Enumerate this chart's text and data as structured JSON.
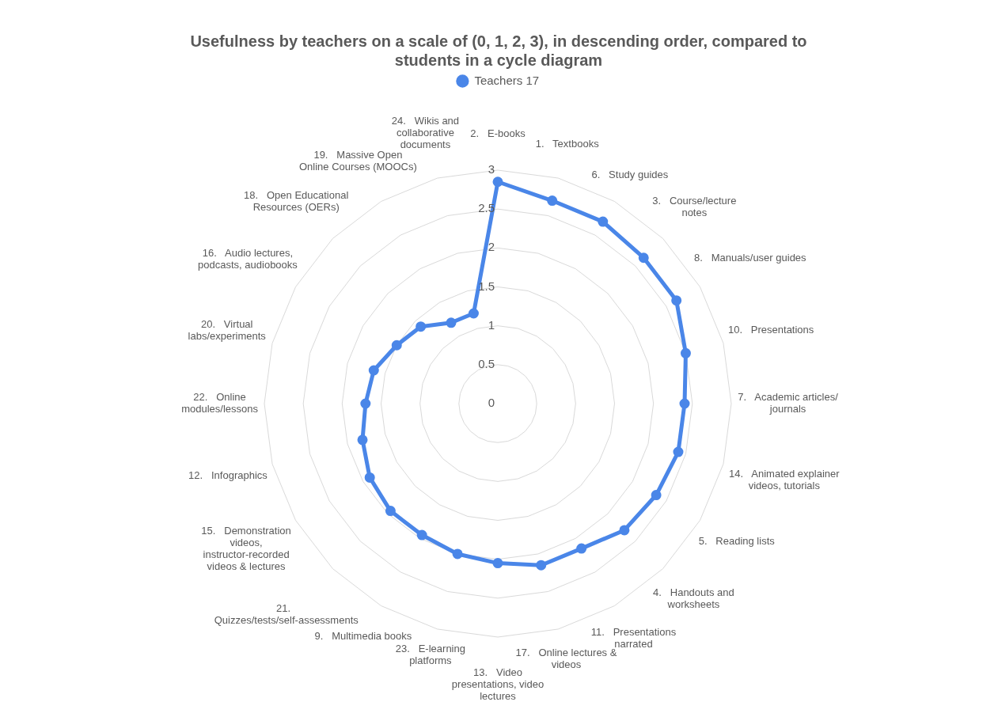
{
  "chart_data": {
    "type": "radar",
    "title": "Usefulness by teachers on a scale of (0, 1, 2, 3), in descending order, compared to students in a cycle diagram",
    "categories": [
      "2.   E-books",
      "1.   Textbooks",
      "6.   Study guides",
      "3.   Course/lecture notes",
      "8.   Manuals/user guides",
      "10.   Presentations",
      "7.   Academic articles/ journals",
      "14.   Animated explainer videos, tutorials",
      "5.   Reading lists",
      "4.   Handouts and worksheets",
      "11.   Presentations narrated",
      "17.   Online lectures & videos",
      "13.   Video presentations, video lectures",
      "23.   E-learning platforms",
      "9.   Multimedia books",
      "21.   Quizzes/tests/self-assessments",
      "15.   Demonstration videos, instructor-recorded videos & lectures",
      "12.   Infographics",
      "22.   Online modules/lessons",
      "20.   Virtual labs/experiments",
      "16.   Audio lectures, podcasts, audiobooks",
      "18.   Open Educational Resources (OERs)",
      "19.   Massive Open Online Courses (MOOCs)",
      "24.   Wikis and collaborative documents"
    ],
    "series": [
      {
        "name": "Teachers 17",
        "color": "#4a86e8",
        "values": [
          2.85,
          2.7,
          2.7,
          2.65,
          2.65,
          2.5,
          2.4,
          2.4,
          2.35,
          2.3,
          2.15,
          2.15,
          2.05,
          2,
          1.95,
          1.95,
          1.9,
          1.8,
          1.7,
          1.65,
          1.5,
          1.4,
          1.2,
          1.2
        ]
      }
    ],
    "ylim": [
      0,
      3
    ],
    "yticks": [
      0,
      0.5,
      1,
      1.5,
      2,
      2.5,
      3
    ],
    "grid": true,
    "legend": "top",
    "marker": "circle"
  }
}
